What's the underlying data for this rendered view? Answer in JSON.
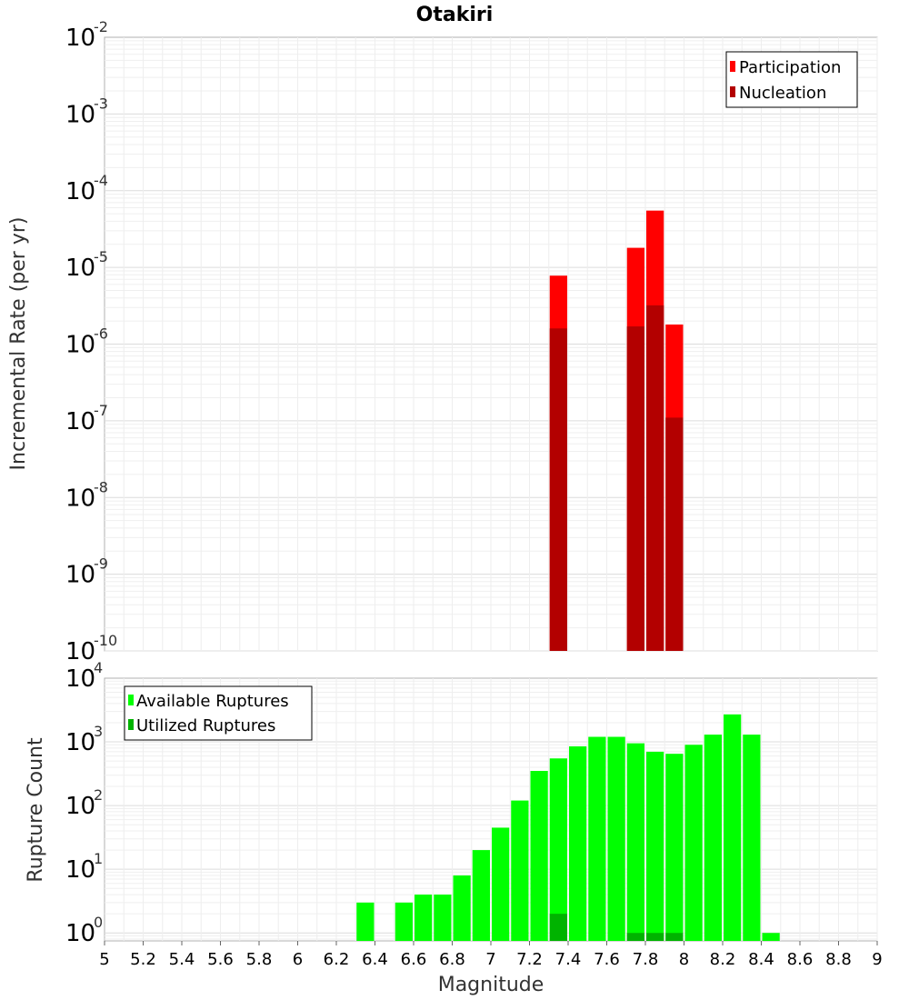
{
  "chart_data": [
    {
      "type": "bar",
      "title": "Otakiri",
      "xlabel": "",
      "ylabel": "Incremental Rate (per yr)",
      "xlim": [
        5,
        9
      ],
      "ylim": [
        1e-10,
        0.01
      ],
      "yscale": "log",
      "y_tick_exponents": [
        "-10",
        "-9",
        "-8",
        "-7",
        "-6",
        "-5",
        "-4",
        "-3",
        "-2"
      ],
      "grid": true,
      "bin_width": 0.1,
      "legend": {
        "placement": "top-right",
        "entries": [
          "Participation",
          "Nucleation"
        ]
      },
      "colors": {
        "Participation": "#ff0000",
        "Nucleation": "#b30000"
      },
      "series": [
        {
          "name": "Participation",
          "x": [
            7.35,
            7.75,
            7.85,
            7.95
          ],
          "values": [
            7.8e-06,
            1.8e-05,
            5.5e-05,
            1.8e-06
          ]
        },
        {
          "name": "Nucleation",
          "x": [
            7.35,
            7.75,
            7.85,
            7.95
          ],
          "values": [
            1.6e-06,
            1.7e-06,
            3.2e-06,
            1.1e-07
          ]
        }
      ]
    },
    {
      "type": "bar",
      "title": "",
      "xlabel": "Magnitude",
      "ylabel": "Rupture Count",
      "xlim": [
        5,
        9
      ],
      "ylim": [
        0.75,
        10000
      ],
      "yscale": "log",
      "y_tick_exponents": [
        "0",
        "1",
        "2",
        "3",
        "4"
      ],
      "x_ticks": [
        "5",
        "5.2",
        "5.4",
        "5.6",
        "5.8",
        "6",
        "6.2",
        "6.4",
        "6.6",
        "6.8",
        "7",
        "7.2",
        "7.4",
        "7.6",
        "7.8",
        "8",
        "8.2",
        "8.4",
        "8.6",
        "8.8",
        "9"
      ],
      "grid": true,
      "bin_width": 0.1,
      "legend": {
        "placement": "top-left",
        "entries": [
          "Available Ruptures",
          "Utilized Ruptures"
        ]
      },
      "colors": {
        "Available Ruptures": "#00ff00",
        "Utilized Ruptures": "#00b300"
      },
      "series": [
        {
          "name": "Available Ruptures",
          "x": [
            6.35,
            6.55,
            6.65,
            6.75,
            6.85,
            6.95,
            7.05,
            7.15,
            7.25,
            7.35,
            7.45,
            7.55,
            7.65,
            7.75,
            7.85,
            7.95,
            8.05,
            8.15,
            8.25,
            8.35,
            8.45
          ],
          "values": [
            3,
            3,
            4,
            4,
            8,
            20,
            45,
            120,
            350,
            550,
            850,
            1200,
            1200,
            950,
            700,
            650,
            900,
            1300,
            2700,
            1300,
            1
          ]
        },
        {
          "name": "Utilized Ruptures",
          "x": [
            7.35,
            7.75,
            7.85,
            7.95
          ],
          "values": [
            2,
            1,
            1,
            1
          ]
        }
      ]
    }
  ]
}
